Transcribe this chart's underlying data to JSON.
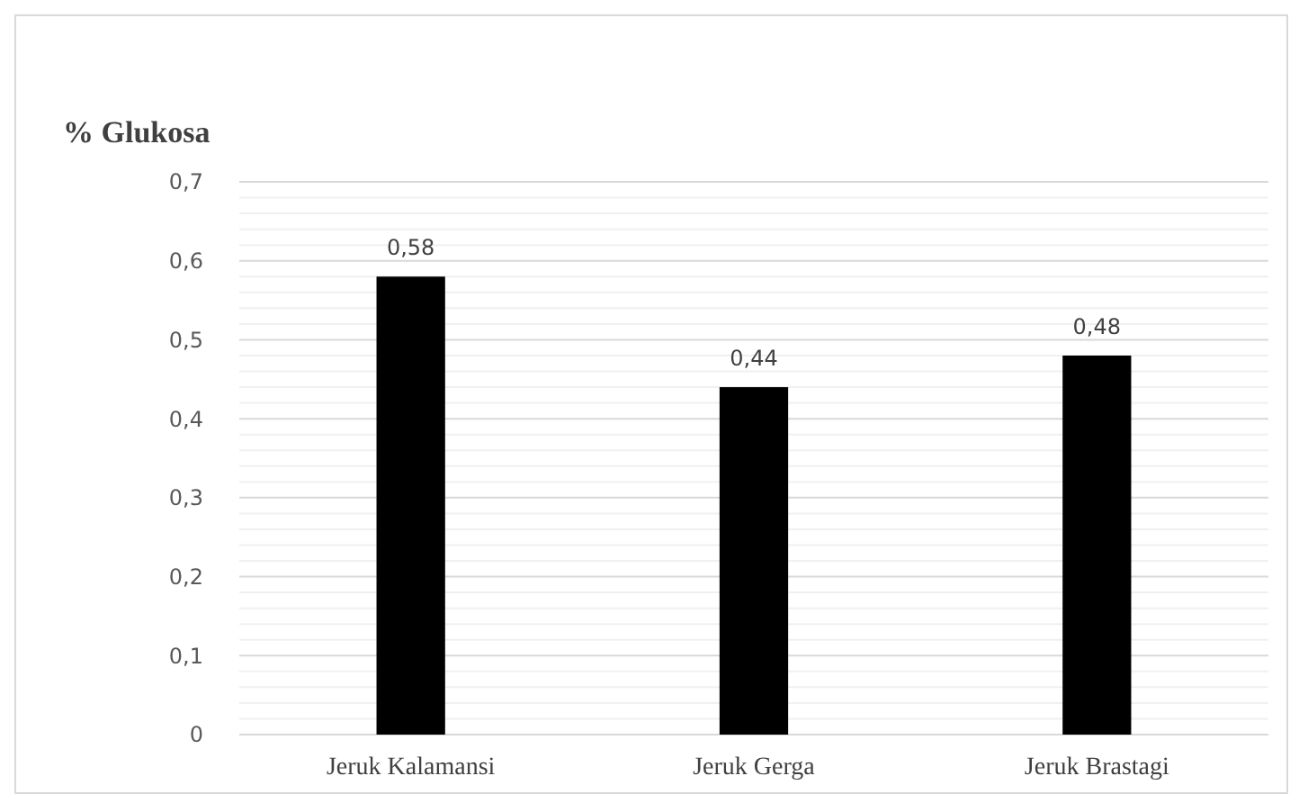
{
  "chart_data": {
    "type": "bar",
    "title": "% Glukosa",
    "categories": [
      "Jeruk Kalamansi",
      "Jeruk Gerga",
      "Jeruk Brastagi"
    ],
    "values": [
      0.58,
      0.44,
      0.48
    ],
    "color": "#000000",
    "data_labels": true,
    "value_labels": [
      "0,58",
      "0,44",
      "0,48"
    ],
    "ylim": [
      0,
      0.7
    ],
    "yticks": [
      0,
      {
        "value": 0.02,
        "label": null
      },
      {
        "value": 0.04,
        "label": null
      },
      {
        "value": 0.06,
        "label": null
      },
      {
        "value": 0.08,
        "label": null
      },
      {
        "value": 0.1,
        "label": "0,1"
      },
      {
        "value": 0.12,
        "label": null
      },
      {
        "value": 0.14,
        "label": null
      },
      {
        "value": 0.16,
        "label": null
      },
      {
        "value": 0.18,
        "label": null
      },
      {
        "value": 0.2,
        "label": "0,2"
      },
      {
        "value": 0.22,
        "label": null
      },
      {
        "value": 0.24,
        "label": null
      },
      {
        "value": 0.26,
        "label": null
      },
      {
        "value": 0.28,
        "label": null
      },
      {
        "value": 0.3,
        "label": "0,3"
      },
      {
        "value": 0.32,
        "label": null
      },
      {
        "value": 0.34,
        "label": null
      },
      {
        "value": 0.36,
        "label": null
      },
      {
        "value": 0.38,
        "label": null
      },
      {
        "value": 0.4,
        "label": "0,4"
      },
      {
        "value": 0.42,
        "label": null
      },
      {
        "value": 0.44,
        "label": null
      },
      {
        "value": 0.46,
        "label": null
      },
      {
        "value": 0.48,
        "label": null
      },
      {
        "value": 0.5,
        "label": "0,5"
      },
      {
        "value": 0.52,
        "label": null
      },
      {
        "value": 0.54,
        "label": null
      },
      {
        "value": 0.56,
        "label": null
      },
      {
        "value": 0.58,
        "label": null
      },
      {
        "value": 0.6,
        "label": "0,6"
      },
      {
        "value": 0.62,
        "label": null
      },
      {
        "value": 0.64,
        "label": null
      },
      {
        "value": 0.66,
        "label": null
      },
      {
        "value": 0.68,
        "label": null
      },
      {
        "value": 0.7,
        "label": "0,7"
      }
    ],
    "grid": "y"
  }
}
